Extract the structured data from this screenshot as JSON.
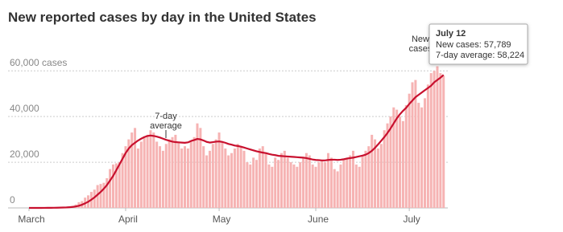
{
  "chart_data": {
    "type": "bar_line",
    "title": "New reported cases by day in the United States",
    "categories": [
      "March",
      null,
      null,
      null,
      null,
      null,
      null,
      null,
      null,
      null,
      null,
      null,
      null,
      null,
      null,
      null,
      null,
      null,
      null,
      null,
      null,
      null,
      null,
      null,
      null,
      null,
      null,
      null,
      null,
      null,
      null,
      "April",
      null,
      null,
      null,
      null,
      null,
      null,
      null,
      null,
      null,
      null,
      null,
      null,
      null,
      null,
      null,
      null,
      null,
      null,
      null,
      null,
      null,
      null,
      null,
      null,
      null,
      null,
      null,
      null,
      null,
      "May",
      null,
      null,
      null,
      null,
      null,
      null,
      null,
      null,
      null,
      null,
      null,
      null,
      null,
      null,
      null,
      null,
      null,
      null,
      null,
      null,
      null,
      null,
      null,
      null,
      null,
      null,
      null,
      null,
      null,
      null,
      "June",
      null,
      null,
      null,
      null,
      null,
      null,
      null,
      null,
      null,
      null,
      null,
      null,
      null,
      null,
      null,
      null,
      null,
      null,
      null,
      null,
      null,
      null,
      null,
      null,
      null,
      null,
      null,
      null,
      null,
      "July",
      null,
      null,
      null,
      null,
      null,
      null,
      null,
      null,
      null,
      null,
      null
    ],
    "series": [
      {
        "name": "New cases",
        "kind": "bar",
        "color": "#f6b3b3",
        "values": [
          10,
          20,
          20,
          30,
          50,
          60,
          100,
          110,
          150,
          200,
          300,
          400,
          500,
          700,
          900,
          1500,
          2500,
          3000,
          4500,
          5500,
          7000,
          8000,
          10000,
          10500,
          11000,
          13000,
          17000,
          19000,
          19500,
          20000,
          24000,
          27000,
          30000,
          33000,
          35000,
          26000,
          29000,
          31000,
          32000,
          34000,
          33000,
          29000,
          27000,
          25000,
          28000,
          30000,
          31000,
          32000,
          29000,
          26000,
          27000,
          26000,
          29000,
          31000,
          37000,
          35000,
          27000,
          23000,
          25000,
          28000,
          30000,
          33000,
          29000,
          26000,
          23000,
          24000,
          26000,
          28000,
          27000,
          25000,
          20000,
          19000,
          22000,
          21000,
          26000,
          27000,
          24000,
          19000,
          18000,
          22000,
          21000,
          24000,
          25000,
          22000,
          20000,
          19000,
          18000,
          20000,
          22000,
          24000,
          23000,
          19000,
          18000,
          20000,
          21000,
          20000,
          24000,
          22000,
          17000,
          16000,
          19000,
          21000,
          22000,
          23000,
          25000,
          19000,
          18000,
          23000,
          25000,
          27000,
          32000,
          30000,
          26000,
          28000,
          34000,
          37000,
          40000,
          44000,
          43000,
          40000,
          38000,
          45000,
          50000,
          55000,
          56000,
          46000,
          44000,
          48000,
          54000,
          59000,
          60000,
          62000,
          59000,
          57789
        ]
      },
      {
        "name": "7-day average",
        "kind": "line",
        "color": "#c8102e",
        "values": [
          0,
          0,
          0,
          0,
          10,
          20,
          30,
          40,
          60,
          80,
          120,
          170,
          230,
          320,
          440,
          650,
          950,
          1400,
          2000,
          2700,
          3600,
          4600,
          5800,
          7000,
          8400,
          10000,
          12000,
          14000,
          16500,
          19000,
          21500,
          24000,
          26000,
          27500,
          28500,
          29500,
          30300,
          31000,
          31500,
          31700,
          31500,
          31200,
          30800,
          30300,
          29800,
          29400,
          29000,
          28800,
          28700,
          28600,
          28500,
          28700,
          29300,
          29700,
          30200,
          30000,
          29500,
          28900,
          28600,
          28800,
          29000,
          29100,
          28900,
          28500,
          28000,
          27700,
          27300,
          27100,
          26800,
          26400,
          26000,
          25600,
          25200,
          24800,
          24500,
          24200,
          24000,
          23600,
          23300,
          23100,
          22800,
          22700,
          22600,
          22500,
          22400,
          22300,
          22200,
          22100,
          22000,
          21800,
          21500,
          21200,
          21000,
          20900,
          20800,
          20800,
          21000,
          21100,
          21100,
          21000,
          21100,
          21300,
          21600,
          21800,
          22000,
          22300,
          22600,
          22900,
          23300,
          24000,
          25000,
          26300,
          27800,
          29400,
          31000,
          32800,
          34800,
          37000,
          39200,
          41000,
          42500,
          43800,
          45500,
          47000,
          48500,
          49500,
          50500,
          51500,
          52500,
          53500,
          55000,
          56000,
          57000,
          58224
        ]
      }
    ],
    "ylim": [
      0,
      65000
    ],
    "yticks": [
      0,
      {
        "value": 20000,
        "label": "20,000"
      },
      {
        "value": 40000,
        "label": "40,000"
      },
      {
        "value": 60000,
        "label": "60,000 cases"
      }
    ],
    "grid": true,
    "annotations": [
      {
        "lines": [
          "7-day",
          "average"
        ]
      },
      {
        "lines": [
          "New",
          "cases"
        ]
      }
    ],
    "tooltip": {
      "title": "July 12",
      "lines": [
        "New cases: 57,789",
        "7-day average: 58,224"
      ]
    }
  }
}
